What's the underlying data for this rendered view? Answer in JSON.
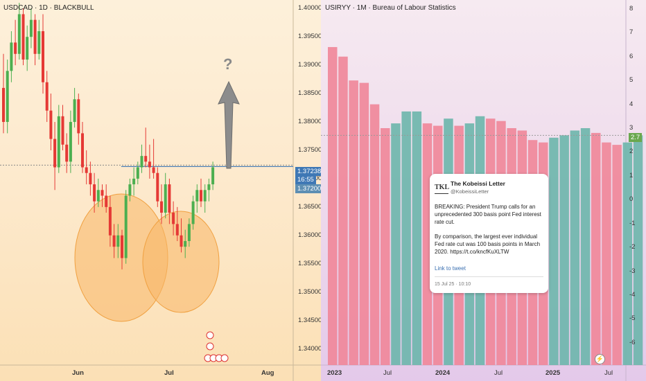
{
  "left_chart": {
    "title": "USDCAD · 1D · BLACKBULL",
    "price_axis": [
      "1.40000",
      "1.39500",
      "1.39000",
      "1.38500",
      "1.38000",
      "1.37500",
      "1.37000",
      "1.36500",
      "1.36000",
      "1.35500",
      "1.35000",
      "1.34500",
      "1.34000"
    ],
    "last_price": "1.37238",
    "countdown": "16:55",
    "second_price": "1.37200",
    "question_mark": "?",
    "time_axis": [
      "Jun",
      "Jul",
      "Aug"
    ],
    "up_color": "#4caf50",
    "down_color": "#e53935"
  },
  "right_chart": {
    "title": "USIRYY · 1M · Bureau of Labour Statistics",
    "value_axis": [
      "8",
      "7",
      "6",
      "5",
      "4",
      "3",
      "2",
      "1",
      "0",
      "-1",
      "-2",
      "-3",
      "-4",
      "-5",
      "-6"
    ],
    "last_value": "2.7",
    "time_axis": [
      "2023",
      "Jul",
      "2024",
      "Jul",
      "2025",
      "Jul"
    ],
    "up_color": "#6fb6ac",
    "down_color": "#f0889a"
  },
  "tweet": {
    "logo": "TKL",
    "name": "The Kobeissi Letter",
    "handle": "@KobeissiLetter",
    "paragraph1": "BREAKING: President Trump calls for an unprecedented 300 basis point Fed interest rate cut.",
    "paragraph2": "By comparison, the largest ever individual Fed rate cut was 100 basis points in March 2020. https://t.co/kncfKuXLTW",
    "link_label": "Link to tweet",
    "date": "15 Jul 25 · 10:10"
  },
  "chart_data": [
    {
      "type": "candlestick",
      "title": "USDCAD · 1D · BLACKBULL",
      "ylim": [
        1.3375,
        1.4015
      ],
      "current_price": 1.37238,
      "series": [
        {
          "name": "USDCAD",
          "values": [
            [
              1.386,
              1.392,
              1.378,
              1.38
            ],
            [
              1.38,
              1.391,
              1.378,
              1.389
            ],
            [
              1.389,
              1.396,
              1.387,
              1.394
            ],
            [
              1.394,
              1.398,
              1.39,
              1.392
            ],
            [
              1.392,
              1.401,
              1.391,
              1.399
            ],
            [
              1.399,
              1.4,
              1.39,
              1.391
            ],
            [
              1.391,
              1.397,
              1.389,
              1.395
            ],
            [
              1.395,
              1.4,
              1.393,
              1.398
            ],
            [
              1.398,
              1.399,
              1.39,
              1.392
            ],
            [
              1.392,
              1.398,
              1.391,
              1.396
            ],
            [
              1.396,
              1.399,
              1.385,
              1.387
            ],
            [
              1.387,
              1.389,
              1.38,
              1.382
            ],
            [
              1.382,
              1.385,
              1.375,
              1.377
            ],
            [
              1.377,
              1.38,
              1.368,
              1.372
            ],
            [
              1.372,
              1.383,
              1.371,
              1.381
            ],
            [
              1.381,
              1.383,
              1.375,
              1.376
            ],
            [
              1.376,
              1.378,
              1.371,
              1.373
            ],
            [
              1.373,
              1.382,
              1.371,
              1.38
            ],
            [
              1.38,
              1.386,
              1.379,
              1.384
            ],
            [
              1.384,
              1.385,
              1.376,
              1.378
            ],
            [
              1.378,
              1.38,
              1.371,
              1.372
            ],
            [
              1.372,
              1.375,
              1.369,
              1.371
            ],
            [
              1.371,
              1.373,
              1.367,
              1.369
            ],
            [
              1.369,
              1.371,
              1.364,
              1.366
            ],
            [
              1.366,
              1.37,
              1.365,
              1.368
            ],
            [
              1.368,
              1.369,
              1.365,
              1.367
            ],
            [
              1.367,
              1.369,
              1.364,
              1.365
            ],
            [
              1.365,
              1.367,
              1.358,
              1.36
            ],
            [
              1.36,
              1.362,
              1.356,
              1.358
            ],
            [
              1.358,
              1.362,
              1.356,
              1.36
            ],
            [
              1.36,
              1.361,
              1.354,
              1.356
            ],
            [
              1.356,
              1.368,
              1.355,
              1.367
            ],
            [
              1.367,
              1.37,
              1.366,
              1.369
            ],
            [
              1.369,
              1.372,
              1.367,
              1.37
            ],
            [
              1.37,
              1.373,
              1.369,
              1.372
            ],
            [
              1.372,
              1.376,
              1.371,
              1.374
            ],
            [
              1.374,
              1.379,
              1.372,
              1.373
            ],
            [
              1.373,
              1.376,
              1.37,
              1.372
            ],
            [
              1.372,
              1.377,
              1.37,
              1.371
            ],
            [
              1.371,
              1.372,
              1.365,
              1.366
            ],
            [
              1.366,
              1.369,
              1.362,
              1.364
            ],
            [
              1.364,
              1.371,
              1.363,
              1.369
            ],
            [
              1.369,
              1.37,
              1.362,
              1.364
            ],
            [
              1.364,
              1.366,
              1.36,
              1.362
            ],
            [
              1.362,
              1.365,
              1.359,
              1.36
            ],
            [
              1.36,
              1.363,
              1.357,
              1.358
            ],
            [
              1.358,
              1.361,
              1.356,
              1.359
            ],
            [
              1.359,
              1.363,
              1.358,
              1.362
            ],
            [
              1.362,
              1.367,
              1.361,
              1.366
            ],
            [
              1.366,
              1.369,
              1.364,
              1.368
            ],
            [
              1.368,
              1.37,
              1.365,
              1.366
            ],
            [
              1.366,
              1.369,
              1.364,
              1.368
            ],
            [
              1.368,
              1.37,
              1.366,
              1.369
            ],
            [
              1.369,
              1.373,
              1.368,
              1.372
            ]
          ]
        }
      ]
    },
    {
      "type": "bar",
      "title": "USIRYY · 1M · Bureau of Labour Statistics",
      "ylabel": "",
      "ylim": [
        -6.5,
        8.2
      ],
      "categories": [
        "2023-01",
        "2023-02",
        "2023-03",
        "2023-04",
        "2023-05",
        "2023-06",
        "2023-07",
        "2023-08",
        "2023-09",
        "2023-10",
        "2023-11",
        "2023-12",
        "2024-01",
        "2024-02",
        "2024-03",
        "2024-04",
        "2024-05",
        "2024-06",
        "2024-07",
        "2024-08",
        "2024-09",
        "2024-10",
        "2024-11",
        "2024-12",
        "2025-01",
        "2025-02",
        "2025-03",
        "2025-04",
        "2025-05",
        "2025-06"
      ],
      "values": [
        6.4,
        6.0,
        5.0,
        4.9,
        4.0,
        3.0,
        3.2,
        3.7,
        3.7,
        3.2,
        3.1,
        3.4,
        3.1,
        3.2,
        3.5,
        3.4,
        3.3,
        3.0,
        2.9,
        2.5,
        2.4,
        2.6,
        2.7,
        2.9,
        3.0,
        2.8,
        2.4,
        2.3,
        2.4,
        2.7
      ],
      "colors": [
        "down",
        "down",
        "down",
        "down",
        "down",
        "down",
        "up",
        "up",
        "up",
        "down",
        "down",
        "up",
        "down",
        "up",
        "up",
        "down",
        "down",
        "down",
        "down",
        "down",
        "down",
        "up",
        "up",
        "up",
        "up",
        "down",
        "down",
        "down",
        "up",
        "up"
      ],
      "last_value": 2.7
    }
  ]
}
